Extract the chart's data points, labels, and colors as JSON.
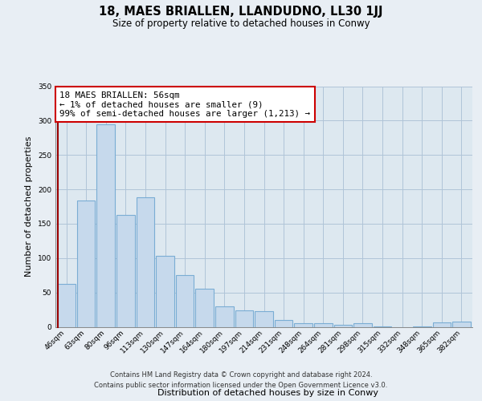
{
  "title": "18, MAES BRIALLEN, LLANDUDNO, LL30 1JJ",
  "subtitle": "Size of property relative to detached houses in Conwy",
  "xlabel": "Distribution of detached houses by size in Conwy",
  "ylabel": "Number of detached properties",
  "categories": [
    "46sqm",
    "63sqm",
    "80sqm",
    "96sqm",
    "113sqm",
    "130sqm",
    "147sqm",
    "164sqm",
    "180sqm",
    "197sqm",
    "214sqm",
    "231sqm",
    "248sqm",
    "264sqm",
    "281sqm",
    "298sqm",
    "315sqm",
    "332sqm",
    "348sqm",
    "365sqm",
    "382sqm"
  ],
  "values": [
    63,
    184,
    295,
    163,
    189,
    103,
    75,
    56,
    30,
    24,
    23,
    10,
    5,
    5,
    3,
    5,
    1,
    0,
    1,
    7,
    8
  ],
  "bar_color": "#c6d9ec",
  "bar_edge_color": "#7aadd4",
  "annotation_text": "18 MAES BRIALLEN: 56sqm\n← 1% of detached houses are smaller (9)\n99% of semi-detached houses are larger (1,213) →",
  "annotation_box_color": "#ffffff",
  "annotation_box_edge_color": "#cc0000",
  "red_line_color": "#990000",
  "ylim": [
    0,
    350
  ],
  "yticks": [
    0,
    50,
    100,
    150,
    200,
    250,
    300,
    350
  ],
  "footer_line1": "Contains HM Land Registry data © Crown copyright and database right 2024.",
  "footer_line2": "Contains public sector information licensed under the Open Government Licence v3.0.",
  "background_color": "#e8eef4",
  "plot_bg_color": "#dde8f0",
  "grid_color": "#b0c4d8"
}
